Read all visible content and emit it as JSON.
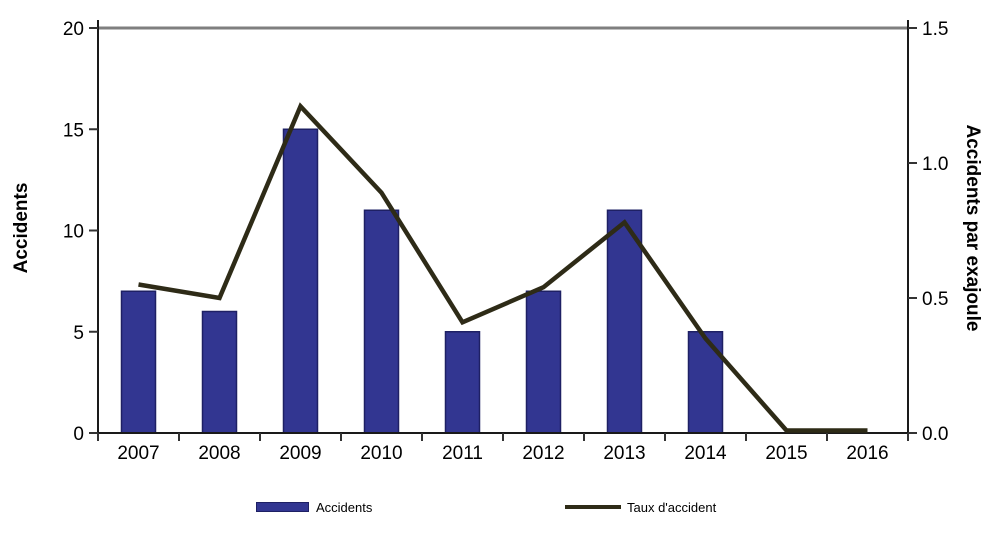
{
  "colors": {
    "bar_fill": "#323691",
    "bar_border": "#1e2064",
    "line": "#2e2b17",
    "axis": "#1a1a1a",
    "tick": "#333333",
    "top_border": "#7f7f7f",
    "text": "#000000"
  },
  "legend": {
    "bar_label": "Accidents",
    "line_label": "Taux d'accident"
  },
  "chart_data": {
    "type": "bar",
    "subtype": "combo-bar-line-dual-axis",
    "categories": [
      "2007",
      "2008",
      "2009",
      "2010",
      "2011",
      "2012",
      "2013",
      "2014",
      "2015",
      "2016"
    ],
    "series": [
      {
        "name": "Accidents",
        "type": "bar",
        "axis": "left",
        "values": [
          7,
          6,
          15,
          11,
          5,
          7,
          11,
          5,
          0,
          0
        ]
      },
      {
        "name": "Taux d'accident",
        "type": "line",
        "axis": "right",
        "values": [
          0.55,
          0.5,
          1.21,
          0.89,
          0.41,
          0.54,
          0.78,
          0.35,
          0,
          0
        ]
      }
    ],
    "left_axis": {
      "label": "Accidents",
      "range": [
        0,
        20
      ],
      "ticks": [
        "0",
        "5",
        "10",
        "15",
        "20"
      ]
    },
    "right_axis": {
      "label": "Accidents par exajoule",
      "range": [
        0,
        1.5
      ],
      "ticks": [
        "0.0",
        "0.5",
        "1.0",
        "1.5"
      ]
    },
    "grid": "off",
    "legend_position": "bottom"
  }
}
